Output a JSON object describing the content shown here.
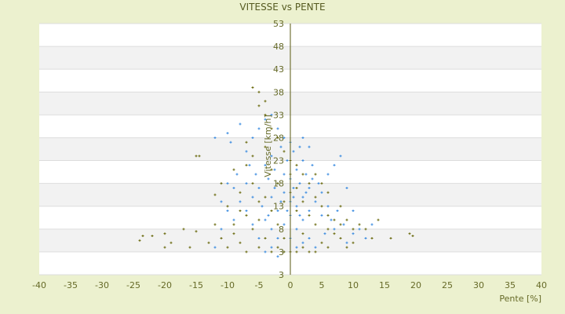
{
  "chart_data": {
    "type": "scatter",
    "title": "VITESSE vs PENTE",
    "xlabel": "Pente [%]",
    "ylabel": "Vitesse [km/h]",
    "xlim": [
      -40,
      40
    ],
    "ylim": [
      -2,
      53
    ],
    "x_ticks": [
      "-40",
      "-35",
      "-30",
      "-25",
      "-20",
      "-15",
      "-10",
      "-5",
      "0",
      "5",
      "10",
      "15",
      "20",
      "25",
      "30",
      "35",
      "40"
    ],
    "y_ticks": [
      "53",
      "48",
      "43",
      "38",
      "33",
      "28",
      "23",
      "18",
      "13",
      "8",
      "3",
      "3"
    ],
    "grid": "horizontal alternating bands",
    "colors": {
      "series_blue": "#3a8be0",
      "series_olive": "#6b6b10",
      "axis": "#5a5a10",
      "band": "#f2f2f2",
      "background": "#ecf1cf"
    },
    "series": [
      {
        "color": "#3a8be0",
        "points": [
          [
            -12,
            28
          ],
          [
            -10,
            29
          ],
          [
            -9.5,
            27
          ],
          [
            -8,
            31
          ],
          [
            -7,
            25
          ],
          [
            -6.5,
            22
          ],
          [
            -8.5,
            20
          ],
          [
            -9,
            17
          ],
          [
            -10,
            18
          ],
          [
            -11,
            14
          ],
          [
            -7,
            12
          ],
          [
            -6,
            9
          ],
          [
            -5,
            6
          ],
          [
            -4,
            3
          ],
          [
            -3,
            4
          ],
          [
            -2,
            2
          ],
          [
            -1,
            3
          ],
          [
            -4,
            22
          ],
          [
            -3.5,
            19
          ],
          [
            -3,
            24
          ],
          [
            -3,
            15
          ],
          [
            -2.5,
            21
          ],
          [
            -2,
            18
          ],
          [
            -2,
            12
          ],
          [
            -1.5,
            26
          ],
          [
            -1,
            20
          ],
          [
            -1,
            16
          ],
          [
            -1,
            9
          ],
          [
            -0.5,
            23
          ],
          [
            0,
            19
          ],
          [
            0,
            14
          ],
          [
            0,
            11
          ],
          [
            0.5,
            25
          ],
          [
            0.5,
            17
          ],
          [
            1,
            21
          ],
          [
            1,
            13
          ],
          [
            1,
            8
          ],
          [
            1.5,
            18
          ],
          [
            2,
            23
          ],
          [
            2,
            15
          ],
          [
            2,
            10
          ],
          [
            2.5,
            20
          ],
          [
            3,
            17
          ],
          [
            3,
            12
          ],
          [
            3.5,
            22
          ],
          [
            4,
            14
          ],
          [
            4,
            9
          ],
          [
            4.5,
            18
          ],
          [
            5,
            11
          ],
          [
            5,
            16
          ],
          [
            5.5,
            7
          ],
          [
            6,
            13
          ],
          [
            6.5,
            10
          ],
          [
            7,
            8
          ],
          [
            7.5,
            12
          ],
          [
            8,
            6
          ],
          [
            8.5,
            9
          ],
          [
            9,
            5
          ],
          [
            10,
            7
          ],
          [
            11,
            8
          ],
          [
            12,
            6
          ],
          [
            -5,
            17
          ],
          [
            -4.5,
            13
          ],
          [
            -4,
            10
          ],
          [
            -5.5,
            20
          ],
          [
            -6,
            15
          ],
          [
            -3,
            8
          ],
          [
            -2,
            6
          ],
          [
            0,
            6
          ],
          [
            1,
            4
          ],
          [
            2,
            5
          ],
          [
            3,
            6
          ],
          [
            4,
            4
          ],
          [
            -1,
            28
          ],
          [
            0,
            27
          ],
          [
            1.5,
            26
          ],
          [
            2,
            28
          ],
          [
            3,
            26
          ],
          [
            -2,
            30
          ],
          [
            -3,
            33
          ],
          [
            -4,
            32
          ],
          [
            -5,
            30
          ],
          [
            -6,
            28
          ],
          [
            6,
            20
          ],
          [
            7,
            22
          ],
          [
            8,
            24
          ],
          [
            9,
            17
          ],
          [
            -7,
            18
          ],
          [
            -8,
            14
          ],
          [
            -9,
            10
          ],
          [
            -10,
            12
          ],
          [
            -11,
            8
          ],
          [
            -12,
            4
          ],
          [
            10,
            12
          ],
          [
            13,
            9
          ],
          [
            -0.5,
            12
          ],
          [
            0.5,
            15
          ],
          [
            -1.5,
            14
          ],
          [
            1.5,
            11
          ],
          [
            2.5,
            16
          ],
          [
            -2.5,
            17
          ],
          [
            3.5,
            19
          ],
          [
            -3.5,
            11
          ]
        ]
      },
      {
        "color": "#6b6b10",
        "points": [
          [
            -24,
            5.5
          ],
          [
            -23.5,
            6.5
          ],
          [
            -22,
            6.5
          ],
          [
            -20,
            7
          ],
          [
            -20,
            4
          ],
          [
            -19,
            5
          ],
          [
            -17,
            8
          ],
          [
            -16,
            4
          ],
          [
            -15,
            7.5
          ],
          [
            -15,
            24
          ],
          [
            -14.5,
            24
          ],
          [
            -13,
            5
          ],
          [
            -12,
            15.5
          ],
          [
            -12,
            9
          ],
          [
            -11,
            6
          ],
          [
            -11,
            18
          ],
          [
            -10,
            4
          ],
          [
            -10,
            13
          ],
          [
            -9,
            7
          ],
          [
            -9,
            21
          ],
          [
            -8,
            5
          ],
          [
            -8,
            16
          ],
          [
            -7,
            3
          ],
          [
            -7,
            11
          ],
          [
            -7,
            27
          ],
          [
            -6,
            39
          ],
          [
            -6,
            8
          ],
          [
            -5,
            38
          ],
          [
            -5,
            35
          ],
          [
            -5,
            14
          ],
          [
            -5,
            4
          ],
          [
            -4,
            36
          ],
          [
            -4,
            33
          ],
          [
            -4,
            26
          ],
          [
            -4,
            6
          ],
          [
            -3,
            30
          ],
          [
            -3,
            21
          ],
          [
            -3,
            3
          ],
          [
            -2,
            28
          ],
          [
            -2,
            18
          ],
          [
            -2,
            9
          ],
          [
            -1,
            25
          ],
          [
            -1,
            3
          ],
          [
            0,
            23
          ],
          [
            0,
            3
          ],
          [
            0,
            16
          ],
          [
            1,
            22
          ],
          [
            1,
            3
          ],
          [
            1,
            12
          ],
          [
            2,
            20
          ],
          [
            2,
            7
          ],
          [
            3,
            18
          ],
          [
            3,
            3
          ],
          [
            4,
            15
          ],
          [
            4,
            9
          ],
          [
            5,
            13
          ],
          [
            5,
            5
          ],
          [
            6,
            11
          ],
          [
            6,
            4
          ],
          [
            7,
            10
          ],
          [
            7,
            7
          ],
          [
            8,
            13
          ],
          [
            8,
            6
          ],
          [
            9,
            10
          ],
          [
            9,
            4
          ],
          [
            10,
            8
          ],
          [
            10,
            5
          ],
          [
            11,
            9
          ],
          [
            12,
            8
          ],
          [
            13,
            6
          ],
          [
            14,
            10
          ],
          [
            16,
            6
          ],
          [
            19,
            7
          ],
          [
            19.5,
            6.5
          ],
          [
            -6,
            24
          ],
          [
            -6,
            18
          ],
          [
            -7,
            22
          ],
          [
            -8,
            12
          ],
          [
            -9,
            9
          ],
          [
            -3,
            12
          ],
          [
            -1,
            14
          ],
          [
            0,
            20
          ],
          [
            1,
            17
          ],
          [
            2,
            14
          ],
          [
            3,
            11
          ],
          [
            4,
            20
          ],
          [
            5,
            18
          ],
          [
            6,
            16
          ],
          [
            -2,
            4
          ],
          [
            -1,
            6
          ],
          [
            2,
            4
          ],
          [
            4,
            3
          ],
          [
            -4,
            15
          ],
          [
            -5,
            10
          ],
          [
            6,
            8
          ],
          [
            8,
            9
          ]
        ]
      }
    ]
  }
}
